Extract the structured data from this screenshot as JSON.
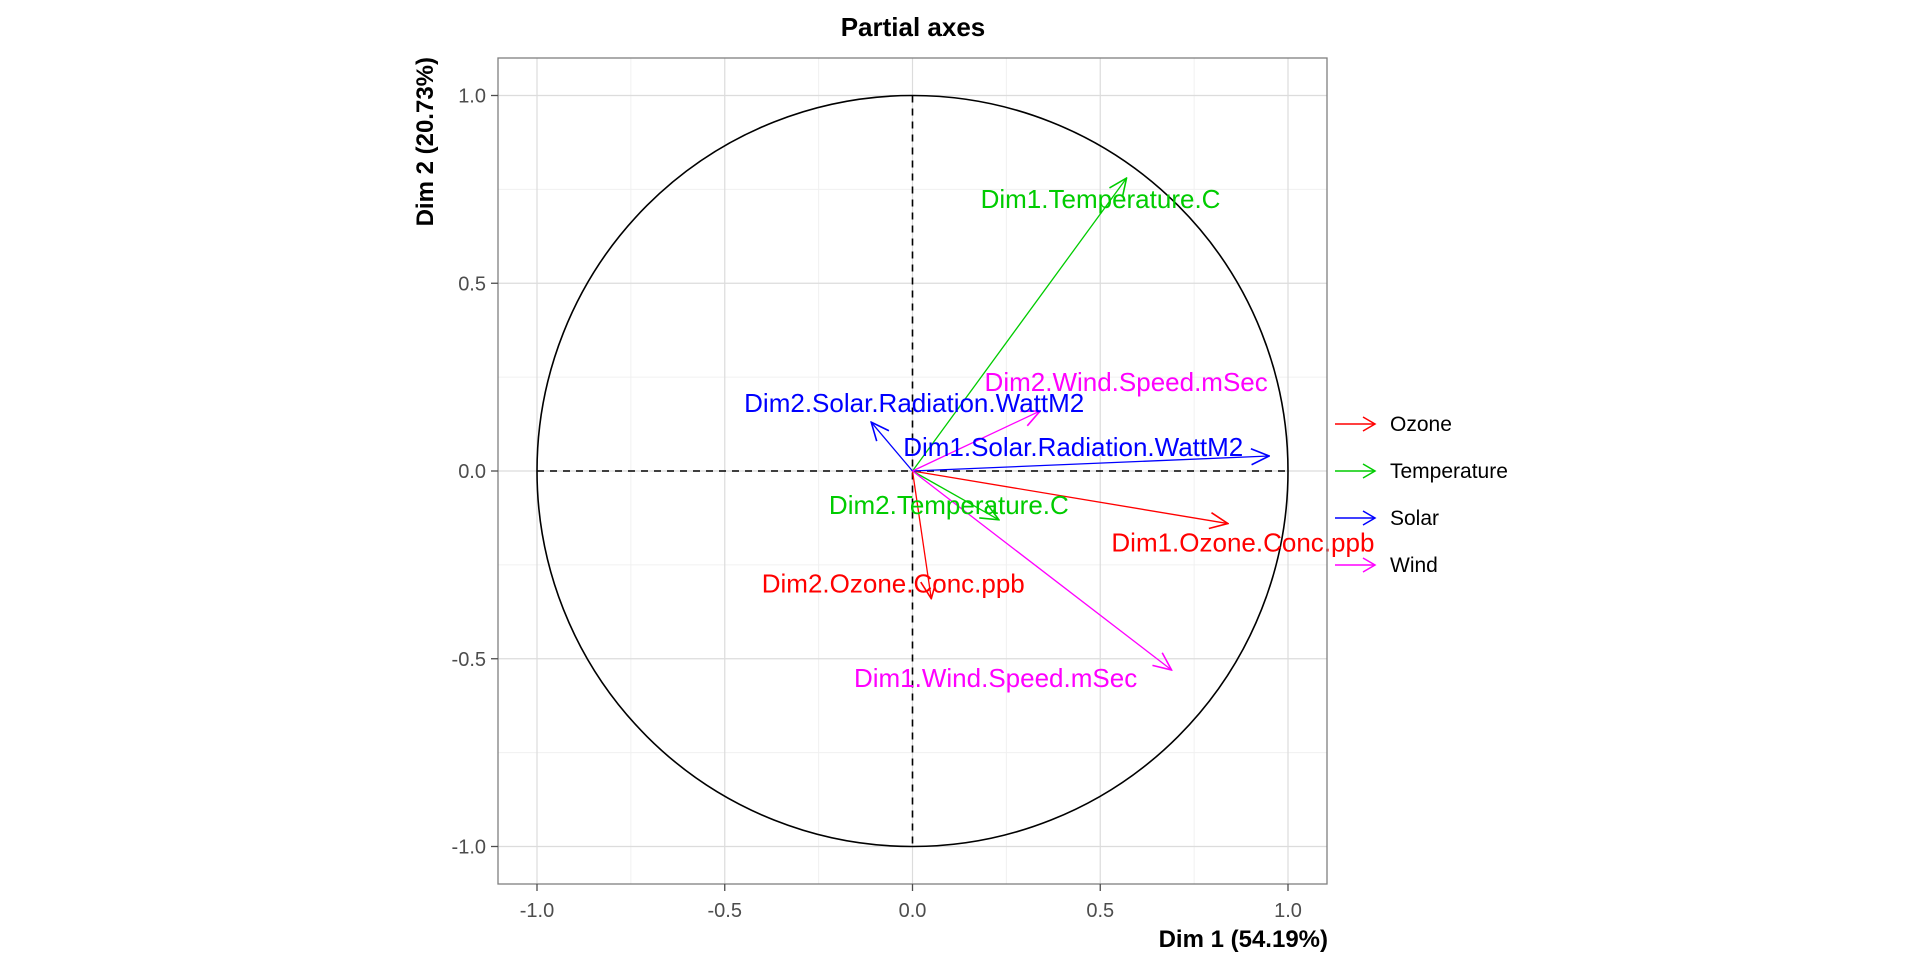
{
  "chart_data": {
    "type": "scatter",
    "title": "Partial axes",
    "xlabel": "Dim 1 (54.19%)",
    "ylabel": "Dim 2 (20.73%)",
    "xlim": [
      -1.1,
      1.1
    ],
    "ylim": [
      -1.1,
      1.1
    ],
    "x_ticks": [
      -1.0,
      -0.5,
      0.0,
      0.5,
      1.0
    ],
    "y_ticks": [
      -1.0,
      -0.5,
      0.0,
      0.5,
      1.0
    ],
    "x_tick_labels": [
      "-1.0",
      "-0.5",
      "0.0",
      "0.5",
      "1.0"
    ],
    "y_tick_labels": [
      "-1.0",
      "-0.5",
      "0.0",
      "0.5",
      "1.0"
    ],
    "grid": true,
    "unit_circle": true,
    "legend_position": "right",
    "series": [
      {
        "name": "Ozone",
        "color": "#FF0000",
        "vectors": [
          {
            "label": "Dim1.Ozone.Conc.ppb",
            "x": 0.84,
            "y": -0.14
          },
          {
            "label": "Dim2.Ozone.Conc.ppb",
            "x": 0.05,
            "y": -0.34
          }
        ]
      },
      {
        "name": "Temperature",
        "color": "#00CC00",
        "vectors": [
          {
            "label": "Dim1.Temperature.C",
            "x": 0.57,
            "y": 0.78
          },
          {
            "label": "Dim2.Temperature.C",
            "x": 0.23,
            "y": -0.13
          }
        ]
      },
      {
        "name": "Solar",
        "color": "#0000FF",
        "vectors": [
          {
            "label": "Dim1.Solar.Radiation.WattM2",
            "x": 0.95,
            "y": 0.04
          },
          {
            "label": "Dim2.Solar.Radiation.WattM2",
            "x": -0.11,
            "y": 0.13
          }
        ]
      },
      {
        "name": "Wind",
        "color": "#FF00FF",
        "vectors": [
          {
            "label": "Dim1.Wind.Speed.mSec",
            "x": 0.69,
            "y": -0.53
          },
          {
            "label": "Dim2.Wind.Speed.mSec",
            "x": 0.34,
            "y": 0.16
          }
        ]
      }
    ]
  }
}
